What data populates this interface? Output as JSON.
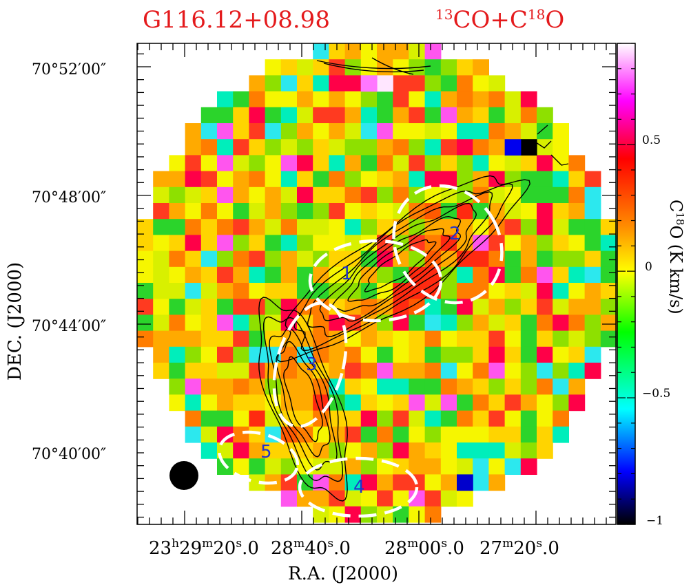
{
  "header": {
    "source_name": "G116.12+08.98",
    "lines_label": {
      "sup1": "13",
      "part1": "CO+C",
      "sup2": "18",
      "part2": "O"
    }
  },
  "axes": {
    "xlabel": "R.A. (J2000)",
    "ylabel": "DEC. (J2000)",
    "colorbar_label": {
      "part1": "C",
      "sup": "18",
      "part2": "O (K km/s)"
    }
  },
  "colors": {
    "title": "#e41a1c",
    "contour": "#000000",
    "clump_ellipse": "#ffffff",
    "clump_label": "#2233cc",
    "beam": "#000000"
  },
  "chart_data": {
    "type": "heatmap",
    "xlabel": "R.A. (J2000)",
    "ylabel": "DEC. (J2000)",
    "x_ticks": [
      {
        "h": "23",
        "m": "29",
        "s": "20",
        "frac": "0"
      },
      {
        "h": "",
        "m": "28",
        "s": "40",
        "frac": "0"
      },
      {
        "h": "",
        "m": "28",
        "s": "00",
        "frac": "0"
      },
      {
        "h": "",
        "m": "27",
        "s": "20",
        "frac": "0"
      }
    ],
    "y_ticks": [
      "70°40′00″",
      "70°44′00″",
      "70°48′00″",
      "70°52′00″"
    ],
    "colorbar": {
      "range": [
        -1,
        0.9
      ],
      "ticks": [
        "0.5",
        "0",
        "−0.5",
        "−1"
      ],
      "tick_values": [
        0.5,
        0,
        -0.5,
        -1
      ],
      "colormap": "black-blue-cyan-green-yellow-orange-red-magenta-white"
    },
    "grid": false,
    "contours": "13CO integrated intensity (black)",
    "clumps": [
      {
        "id": "1"
      },
      {
        "id": "2"
      },
      {
        "id": "3"
      },
      {
        "id": "4"
      },
      {
        "id": "5"
      }
    ],
    "beam": "filled circle, lower-left"
  }
}
